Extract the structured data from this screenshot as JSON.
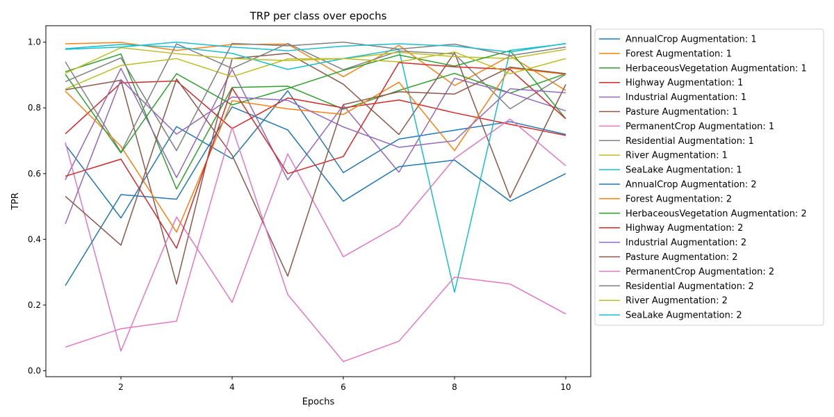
{
  "chart_data": {
    "type": "line",
    "title": "TRP per class over epochs",
    "xlabel": "Epochs",
    "ylabel": "TPR",
    "xlim": [
      0.65,
      10.45
    ],
    "ylim": [
      -0.018,
      1.05
    ],
    "xticks": [
      2,
      4,
      6,
      8,
      10
    ],
    "yticks": [
      0.0,
      0.2,
      0.4,
      0.6,
      0.8,
      1.0
    ],
    "ytick_labels": [
      "0.0",
      "0.2",
      "0.4",
      "0.6",
      "0.8",
      "1.0"
    ],
    "grid": false,
    "legend": "outside-right",
    "x": [
      1,
      2,
      3,
      4,
      5,
      6,
      7,
      8,
      9,
      10
    ],
    "series": [
      {
        "name": "AnnualCrop Augmentation: 1",
        "color": "#1f77b4",
        "values": [
          0.688,
          0.465,
          0.743,
          0.645,
          0.852,
          0.603,
          0.705,
          0.732,
          0.758,
          0.719
        ]
      },
      {
        "name": "Forest Augmentation: 1",
        "color": "#ff7f0e",
        "values": [
          0.995,
          0.999,
          0.975,
          0.993,
          0.994,
          0.895,
          0.99,
          0.868,
          0.958,
          0.853
        ]
      },
      {
        "name": "HerbaceousVegetation Augmentation: 1",
        "color": "#2ca02c",
        "values": [
          0.91,
          0.964,
          0.553,
          0.862,
          0.866,
          0.796,
          0.853,
          0.905,
          0.845,
          0.904
        ]
      },
      {
        "name": "Highway Augmentation: 1",
        "color": "#d62728",
        "values": [
          0.721,
          0.876,
          0.882,
          0.737,
          0.83,
          0.8,
          0.824,
          0.785,
          0.75,
          0.716
        ]
      },
      {
        "name": "Industrial Augmentation: 1",
        "color": "#9467bd",
        "values": [
          0.581,
          0.92,
          0.588,
          0.917,
          0.581,
          0.808,
          0.604,
          0.89,
          0.845,
          0.791
        ]
      },
      {
        "name": "Pasture Augmentation: 1",
        "color": "#8c564b",
        "values": [
          0.855,
          0.884,
          0.264,
          0.95,
          0.966,
          0.872,
          0.719,
          0.968,
          0.527,
          0.871
        ]
      },
      {
        "name": "PermanentCrop Augmentation: 1",
        "color": "#e377c2",
        "values": [
          0.695,
          0.06,
          0.468,
          0.208,
          0.66,
          0.347,
          0.443,
          0.646,
          0.766,
          0.624
        ]
      },
      {
        "name": "Residential Augmentation: 1",
        "color": "#7f7f7f",
        "values": [
          0.94,
          0.665,
          0.995,
          0.92,
          0.996,
          0.916,
          0.973,
          0.964,
          0.797,
          0.902
        ]
      },
      {
        "name": "River Augmentation: 1",
        "color": "#bcbd22",
        "values": [
          0.857,
          0.929,
          0.95,
          0.895,
          0.949,
          0.95,
          0.969,
          0.956,
          0.95,
          0.978
        ]
      },
      {
        "name": "SeaLake Augmentation: 1",
        "color": "#17becf",
        "values": [
          0.98,
          0.993,
          0.985,
          0.966,
          0.917,
          0.95,
          0.978,
          0.239,
          0.975,
          0.995
        ]
      },
      {
        "name": "AnnualCrop Augmentation: 2",
        "color": "#1f77b4",
        "values": [
          0.259,
          0.536,
          0.522,
          0.803,
          0.733,
          0.516,
          0.621,
          0.641,
          0.516,
          0.6
        ]
      },
      {
        "name": "Forest Augmentation: 2",
        "color": "#ff7f0e",
        "values": [
          0.851,
          0.683,
          0.422,
          0.822,
          0.797,
          0.78,
          0.878,
          0.67,
          0.921,
          0.902
        ]
      },
      {
        "name": "HerbaceousVegetation Augmentation: 2",
        "color": "#2ca02c",
        "values": [
          0.902,
          0.663,
          0.904,
          0.809,
          0.859,
          0.914,
          0.961,
          0.927,
          0.974,
          0.767
        ]
      },
      {
        "name": "Highway Augmentation: 2",
        "color": "#d62728",
        "values": [
          0.592,
          0.644,
          0.373,
          0.86,
          0.6,
          0.652,
          0.938,
          0.925,
          0.917,
          0.767
        ]
      },
      {
        "name": "Industrial Augmentation: 2",
        "color": "#9467bd",
        "values": [
          0.447,
          0.886,
          0.72,
          0.833,
          0.823,
          0.742,
          0.68,
          0.7,
          0.858,
          0.846
        ]
      },
      {
        "name": "Pasture Augmentation: 2",
        "color": "#8c564b",
        "values": [
          0.531,
          0.382,
          0.888,
          0.656,
          0.288,
          0.81,
          0.849,
          0.842,
          0.924,
          0.904
        ]
      },
      {
        "name": "PermanentCrop Augmentation: 2",
        "color": "#e377c2",
        "values": [
          0.072,
          0.128,
          0.151,
          0.741,
          0.232,
          0.028,
          0.09,
          0.285,
          0.264,
          0.173
        ]
      },
      {
        "name": "Residential Augmentation: 2",
        "color": "#7f7f7f",
        "values": [
          0.88,
          0.952,
          0.67,
          0.996,
          0.989,
          1.0,
          0.979,
          0.994,
          0.959,
          0.985
        ]
      },
      {
        "name": "River Augmentation: 2",
        "color": "#bcbd22",
        "values": [
          0.905,
          0.983,
          0.965,
          0.95,
          0.944,
          0.95,
          0.94,
          0.97,
          0.904,
          0.95
        ]
      },
      {
        "name": "SeaLake Augmentation: 2",
        "color": "#17becf",
        "values": [
          0.978,
          0.985,
          1.0,
          0.985,
          0.974,
          0.988,
          0.995,
          0.988,
          0.97,
          0.996
        ]
      }
    ]
  }
}
